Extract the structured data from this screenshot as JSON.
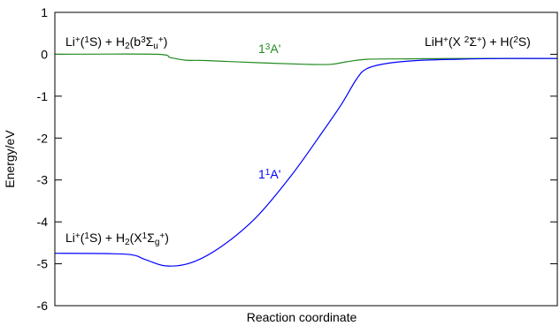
{
  "chart_data": {
    "type": "line",
    "xlabel": "Reaction coordinate",
    "ylabel": "Energy/eV",
    "ylim": [
      -6,
      1
    ],
    "xlim": [
      0,
      1
    ],
    "yticks": [
      1,
      0,
      -1,
      -2,
      -3,
      -4,
      -5,
      -6
    ],
    "ytick_labels": [
      "1",
      "0",
      "-1",
      "-2",
      "-3",
      "-4",
      "-5",
      "-6"
    ],
    "xticks": [],
    "grid": false,
    "legend": "none",
    "series": [
      {
        "name": "1³A'",
        "color": "#228b22",
        "x": [
          0.0,
          0.2,
          0.23,
          0.26,
          0.3,
          0.4,
          0.5,
          0.55,
          0.58,
          0.62,
          0.7,
          0.8,
          1.0
        ],
        "y": [
          0.0,
          0.0,
          -0.08,
          -0.14,
          -0.15,
          -0.2,
          -0.24,
          -0.24,
          -0.18,
          -0.12,
          -0.11,
          -0.1,
          -0.1
        ]
      },
      {
        "name": "1¹A'",
        "color": "#0000ff",
        "x": [
          0.0,
          0.14,
          0.18,
          0.22,
          0.27,
          0.33,
          0.4,
          0.47,
          0.53,
          0.57,
          0.6,
          0.62,
          0.66,
          0.72,
          0.8,
          0.9,
          1.0
        ],
        "y": [
          -4.75,
          -4.77,
          -4.9,
          -5.05,
          -4.98,
          -4.6,
          -3.9,
          -2.9,
          -1.9,
          -1.2,
          -0.6,
          -0.35,
          -0.22,
          -0.15,
          -0.12,
          -0.1,
          -0.1
        ]
      }
    ]
  },
  "annotations": {
    "top_left": {
      "parts": [
        {
          "t": "Li",
          "s": "n"
        },
        {
          "t": "+",
          "s": "sup"
        },
        {
          "t": "(",
          "s": "n"
        },
        {
          "t": "1",
          "s": "sup"
        },
        {
          "t": "S) + H",
          "s": "n"
        },
        {
          "t": "2",
          "s": "sub"
        },
        {
          "t": "(b",
          "s": "n"
        },
        {
          "t": "3",
          "s": "sup"
        },
        {
          "t": "Σ",
          "s": "n"
        },
        {
          "t": "u",
          "s": "sub"
        },
        {
          "t": "+",
          "s": "sup"
        },
        {
          "t": ")",
          "s": "n"
        }
      ]
    },
    "triplet_label": {
      "parts": [
        {
          "t": "1",
          "s": "n"
        },
        {
          "t": "3",
          "s": "sup"
        },
        {
          "t": "A'",
          "s": "n"
        }
      ]
    },
    "top_right": {
      "parts": [
        {
          "t": "LiH",
          "s": "n"
        },
        {
          "t": "+",
          "s": "sup"
        },
        {
          "t": "(X ",
          "s": "n"
        },
        {
          "t": "2",
          "s": "sup"
        },
        {
          "t": "Σ",
          "s": "n"
        },
        {
          "t": "+",
          "s": "sup"
        },
        {
          "t": ") + H(",
          "s": "n"
        },
        {
          "t": "2",
          "s": "sup"
        },
        {
          "t": "S)",
          "s": "n"
        }
      ]
    },
    "singlet_label": {
      "parts": [
        {
          "t": "1",
          "s": "n"
        },
        {
          "t": "1",
          "s": "sup"
        },
        {
          "t": "A'",
          "s": "n"
        }
      ]
    },
    "bottom_left": {
      "parts": [
        {
          "t": "Li",
          "s": "n"
        },
        {
          "t": "+",
          "s": "sup"
        },
        {
          "t": "(",
          "s": "n"
        },
        {
          "t": "1",
          "s": "sup"
        },
        {
          "t": "S) + H",
          "s": "n"
        },
        {
          "t": "2",
          "s": "sub"
        },
        {
          "t": "(X",
          "s": "n"
        },
        {
          "t": "1",
          "s": "sup"
        },
        {
          "t": "Σ",
          "s": "n"
        },
        {
          "t": "g",
          "s": "sub"
        },
        {
          "t": "+",
          "s": "sup"
        },
        {
          "t": ")",
          "s": "n"
        }
      ]
    }
  }
}
